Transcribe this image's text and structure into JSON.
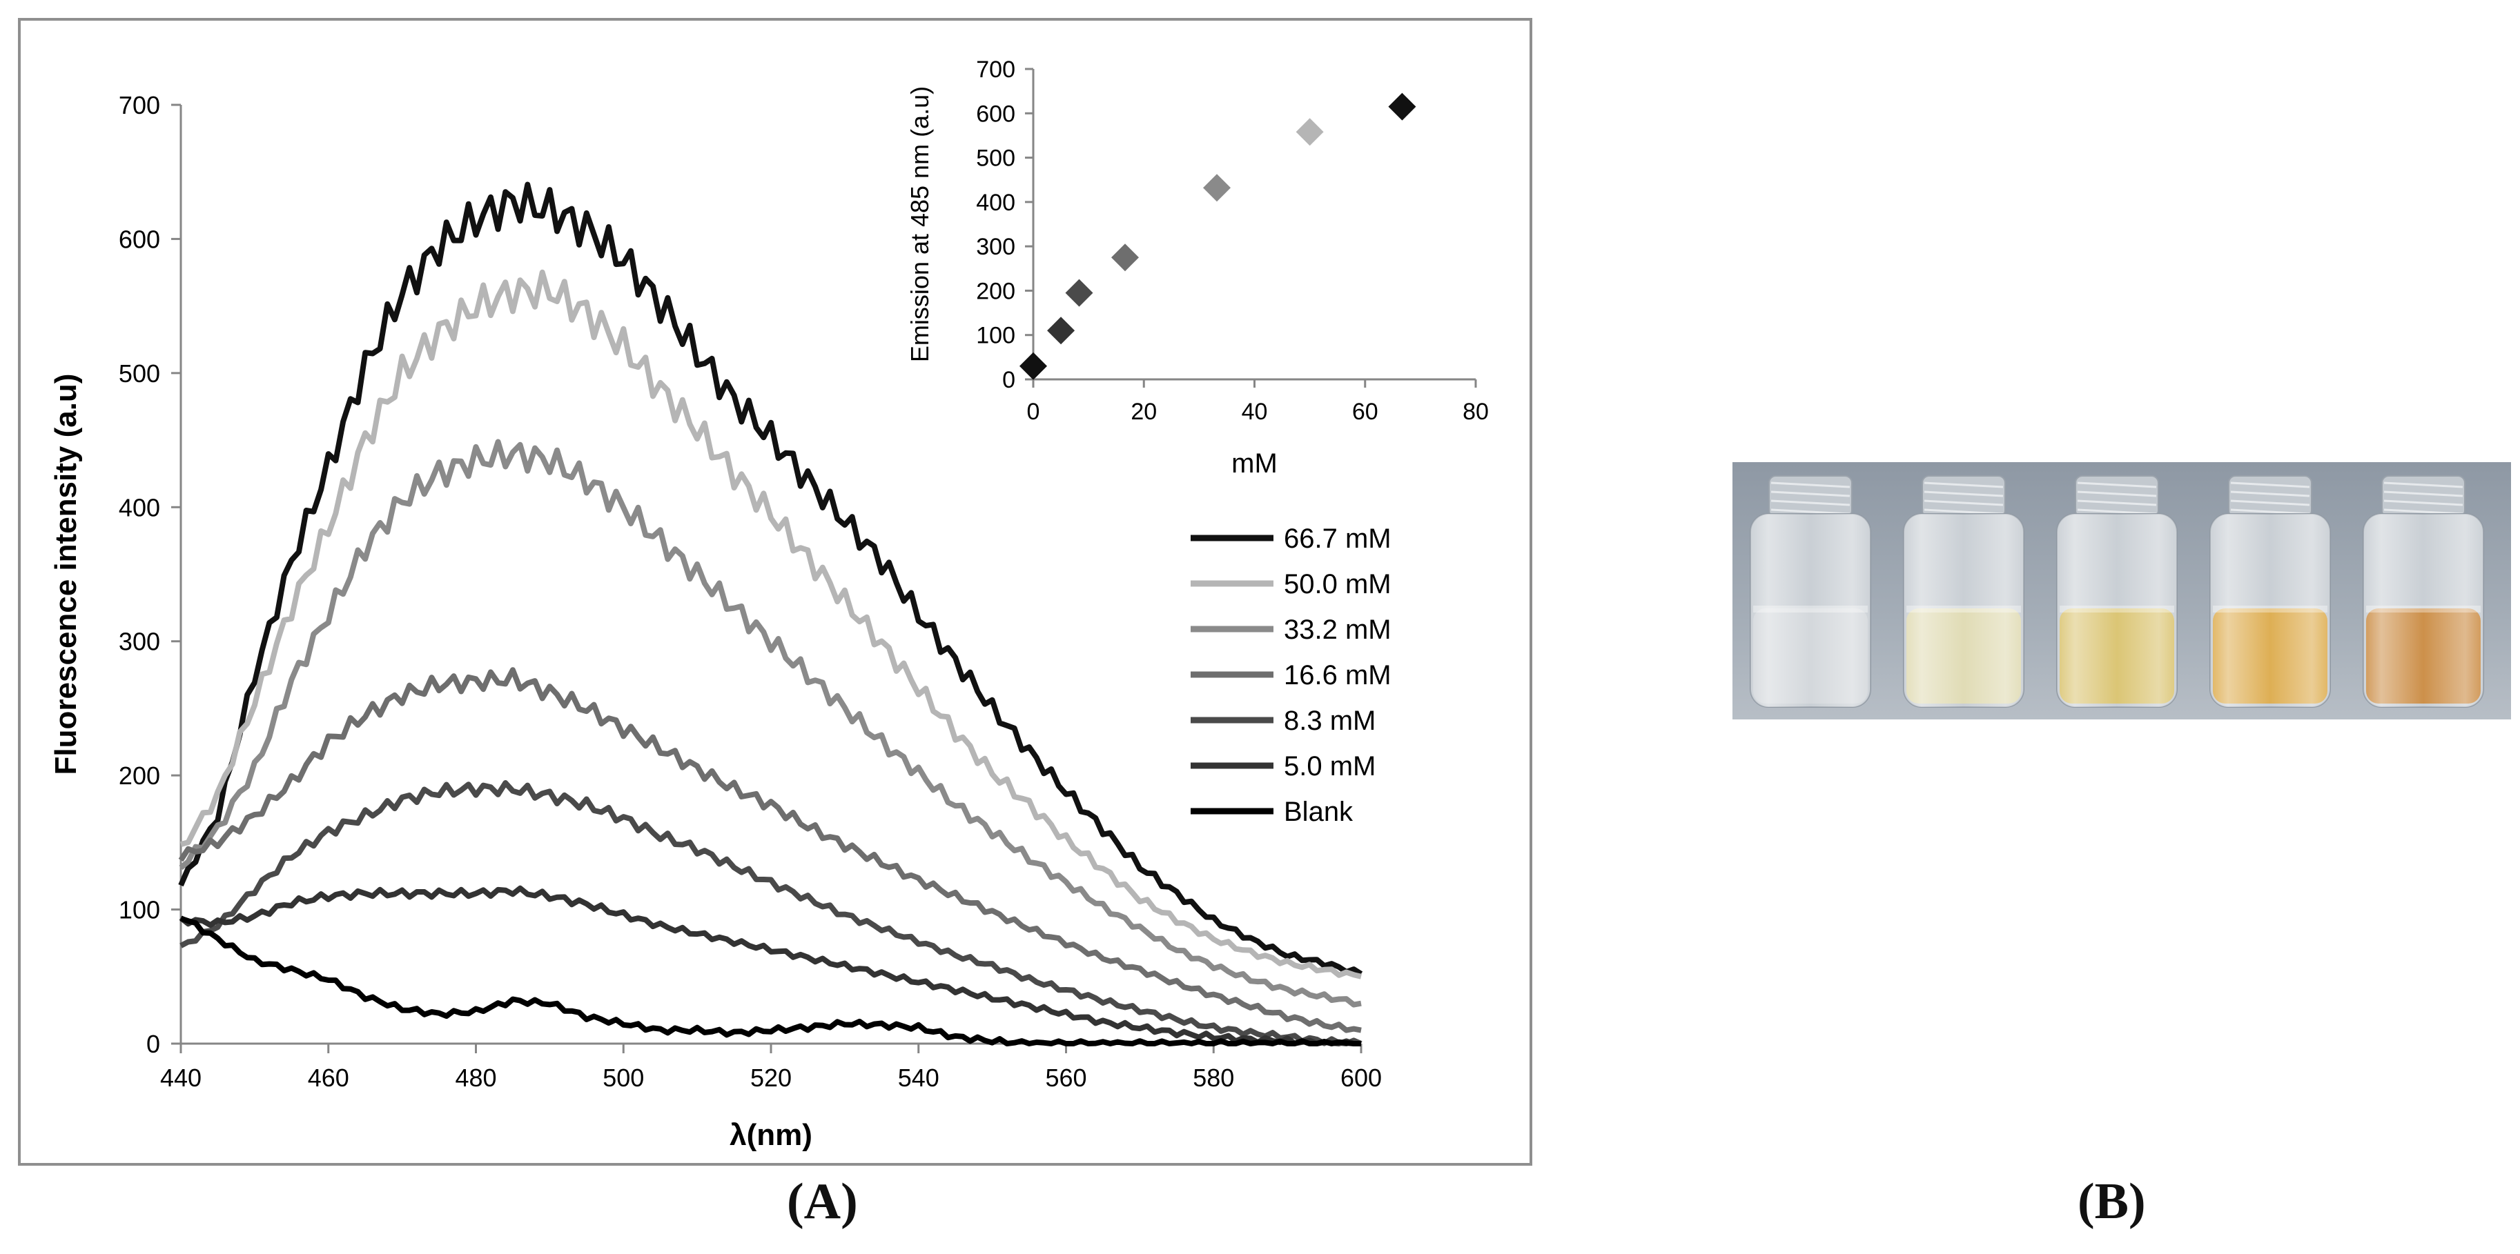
{
  "chart_data": [
    {
      "type": "line",
      "title": "",
      "xlabel": "λ(nm)",
      "ylabel": "Fluorescence intensity (a.u)",
      "xlim": [
        440,
        600
      ],
      "ylim": [
        0,
        700
      ],
      "xticks": [
        440,
        460,
        480,
        500,
        520,
        540,
        560,
        580,
        600
      ],
      "yticks": [
        0,
        100,
        200,
        300,
        400,
        500,
        600,
        700
      ],
      "grid": false,
      "legend_position": "right",
      "series": [
        {
          "name": "66.7 mM",
          "color": "#111111",
          "x": [
            440,
            445,
            450,
            455,
            460,
            465,
            470,
            475,
            480,
            485,
            490,
            495,
            500,
            505,
            510,
            515,
            520,
            525,
            530,
            535,
            540,
            545,
            550,
            555,
            560,
            565,
            570,
            575,
            580,
            585,
            590,
            595,
            600
          ],
          "y": [
            118,
            170,
            275,
            360,
            430,
            505,
            560,
            595,
            615,
            628,
            622,
            608,
            585,
            552,
            515,
            480,
            452,
            420,
            390,
            360,
            320,
            285,
            250,
            218,
            188,
            160,
            132,
            112,
            92,
            78,
            66,
            60,
            52
          ]
        },
        {
          "name": "50.0 mM",
          "color": "#b5b5b5",
          "x": [
            440,
            445,
            450,
            455,
            460,
            465,
            470,
            475,
            480,
            485,
            490,
            495,
            500,
            505,
            510,
            515,
            520,
            525,
            530,
            535,
            540,
            545,
            550,
            555,
            560,
            565,
            570,
            575,
            580,
            585,
            590,
            595,
            600
          ],
          "y": [
            145,
            185,
            255,
            325,
            385,
            450,
            500,
            530,
            550,
            560,
            562,
            545,
            520,
            488,
            458,
            425,
            395,
            362,
            330,
            298,
            265,
            232,
            202,
            178,
            152,
            130,
            108,
            92,
            78,
            68,
            60,
            55,
            50
          ]
        },
        {
          "name": "33.2 mM",
          "color": "#8a8a8a",
          "x": [
            440,
            445,
            450,
            455,
            460,
            465,
            470,
            475,
            480,
            485,
            490,
            495,
            500,
            505,
            510,
            515,
            520,
            525,
            530,
            535,
            540,
            545,
            550,
            555,
            560,
            565,
            570,
            575,
            580,
            585,
            590,
            595,
            600
          ],
          "y": [
            132,
            160,
            205,
            270,
            320,
            370,
            405,
            425,
            435,
            440,
            435,
            420,
            400,
            375,
            350,
            325,
            300,
            275,
            250,
            225,
            202,
            178,
            158,
            138,
            120,
            102,
            86,
            70,
            58,
            48,
            40,
            35,
            30
          ]
        },
        {
          "name": "16.6 mM",
          "color": "#6e6e6e",
          "x": [
            440,
            445,
            450,
            455,
            460,
            465,
            470,
            475,
            480,
            485,
            490,
            495,
            500,
            505,
            510,
            515,
            520,
            525,
            530,
            535,
            540,
            545,
            550,
            555,
            560,
            565,
            570,
            575,
            580,
            585,
            590,
            595,
            600
          ],
          "y": [
            140,
            150,
            170,
            195,
            225,
            245,
            260,
            268,
            270,
            272,
            262,
            250,
            235,
            220,
            205,
            190,
            178,
            162,
            148,
            135,
            122,
            110,
            98,
            86,
            75,
            64,
            55,
            45,
            36,
            28,
            20,
            14,
            10
          ]
        },
        {
          "name": "8.3 mM",
          "color": "#4a4a4a",
          "x": [
            440,
            445,
            450,
            455,
            460,
            465,
            470,
            475,
            480,
            485,
            490,
            495,
            500,
            505,
            510,
            515,
            520,
            525,
            530,
            535,
            540,
            545,
            550,
            555,
            560,
            565,
            570,
            575,
            580,
            585,
            590,
            595,
            600
          ],
          "y": [
            72,
            88,
            115,
            140,
            158,
            170,
            182,
            188,
            190,
            190,
            185,
            178,
            168,
            155,
            145,
            132,
            120,
            108,
            96,
            86,
            76,
            66,
            58,
            48,
            40,
            32,
            25,
            18,
            12,
            8,
            5,
            2,
            0
          ]
        },
        {
          "name": "5.0 mM",
          "color": "#333333",
          "x": [
            440,
            445,
            450,
            455,
            460,
            465,
            470,
            475,
            480,
            485,
            490,
            495,
            500,
            505,
            510,
            515,
            520,
            525,
            530,
            535,
            540,
            545,
            550,
            555,
            560,
            565,
            570,
            575,
            580,
            585,
            590,
            595,
            600
          ],
          "y": [
            92,
            90,
            95,
            105,
            110,
            112,
            112,
            112,
            112,
            114,
            110,
            104,
            96,
            88,
            82,
            76,
            70,
            64,
            58,
            52,
            46,
            40,
            34,
            28,
            22,
            16,
            12,
            8,
            5,
            3,
            2,
            0,
            0
          ]
        },
        {
          "name": "Blank",
          "color": "#000000",
          "x": [
            440,
            445,
            450,
            455,
            460,
            465,
            470,
            475,
            480,
            485,
            490,
            495,
            500,
            505,
            510,
            515,
            520,
            525,
            530,
            535,
            540,
            545,
            550,
            555,
            560,
            565,
            570,
            575,
            580,
            585,
            590,
            595,
            600
          ],
          "y": [
            95,
            78,
            62,
            55,
            48,
            35,
            26,
            22,
            24,
            32,
            30,
            20,
            15,
            10,
            10,
            8,
            10,
            12,
            15,
            14,
            12,
            5,
            2,
            0,
            0,
            0,
            0,
            0,
            0,
            0,
            0,
            0,
            0
          ]
        }
      ]
    },
    {
      "type": "scatter",
      "title": "",
      "xlabel": "mM",
      "ylabel": "Emission at 485 nm (a.u)",
      "xlim": [
        0,
        80
      ],
      "ylim": [
        0,
        700
      ],
      "xticks": [
        0,
        20,
        40,
        60,
        80
      ],
      "yticks": [
        0,
        100,
        200,
        300,
        400,
        500,
        600,
        700
      ],
      "grid": false,
      "marker": "diamond",
      "series": [
        {
          "name": "Emission",
          "x": [
            0,
            5.0,
            8.3,
            16.6,
            33.2,
            50.0,
            66.7
          ],
          "y": [
            30,
            110,
            195,
            275,
            432,
            558,
            615
          ],
          "colors": [
            "#111111",
            "#333333",
            "#4a4a4a",
            "#6e6e6e",
            "#8a8a8a",
            "#b5b5b5",
            "#111111"
          ]
        }
      ]
    }
  ],
  "panels": {
    "left_label": "(A)",
    "right_label": "(B)"
  },
  "photo": {
    "vial_count": 5,
    "liquid_colors": [
      "#c9ced3",
      "#d9d3a3",
      "#d2b752",
      "#d69b2a",
      "#c0741d"
    ]
  }
}
